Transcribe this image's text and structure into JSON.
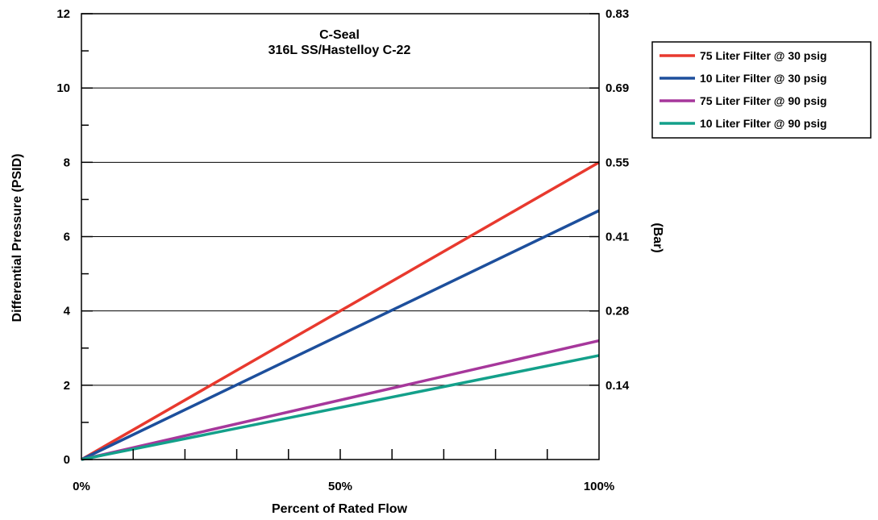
{
  "chart_data": {
    "type": "line",
    "title": "C-Seal",
    "subtitle": "316L SS/Hastelloy C-22",
    "xlabel": "Percent of Rated Flow",
    "ylabel": "Differential Pressure (PSID)",
    "y2label": "(Bar)",
    "xlim": [
      0,
      100
    ],
    "ylim": [
      0,
      12
    ],
    "x_ticks": [
      0,
      50,
      100
    ],
    "x_tick_labels": [
      "0%",
      "50%",
      "100%"
    ],
    "x_minor_step": 10,
    "y_ticks": [
      0,
      2,
      4,
      6,
      8,
      10,
      12
    ],
    "y_tick_labels": [
      "0",
      "2",
      "4",
      "6",
      "8",
      "10",
      "12"
    ],
    "y2_ticks": [
      2,
      4,
      6,
      8,
      10,
      12
    ],
    "y2_tick_labels": [
      "0.14",
      "0.28",
      "0.41",
      "0.55",
      "0.69",
      "0.83"
    ],
    "grid": "horizontal",
    "legend_position": "right",
    "series": [
      {
        "name": "75 Liter Filter @ 30 psig",
        "color": "#e8392e",
        "x": [
          0,
          100
        ],
        "y": [
          0,
          8.0
        ]
      },
      {
        "name": "10 Liter Filter @ 30 psig",
        "color": "#1d4f9c",
        "x": [
          0,
          100
        ],
        "y": [
          0,
          6.7
        ]
      },
      {
        "name": "75 Liter Filter @ 90 psig",
        "color": "#a6379b",
        "x": [
          0,
          100
        ],
        "y": [
          0,
          3.2
        ]
      },
      {
        "name": "10 Liter Filter @ 90 psig",
        "color": "#13a08a",
        "x": [
          0,
          100
        ],
        "y": [
          0,
          2.8
        ]
      }
    ]
  }
}
